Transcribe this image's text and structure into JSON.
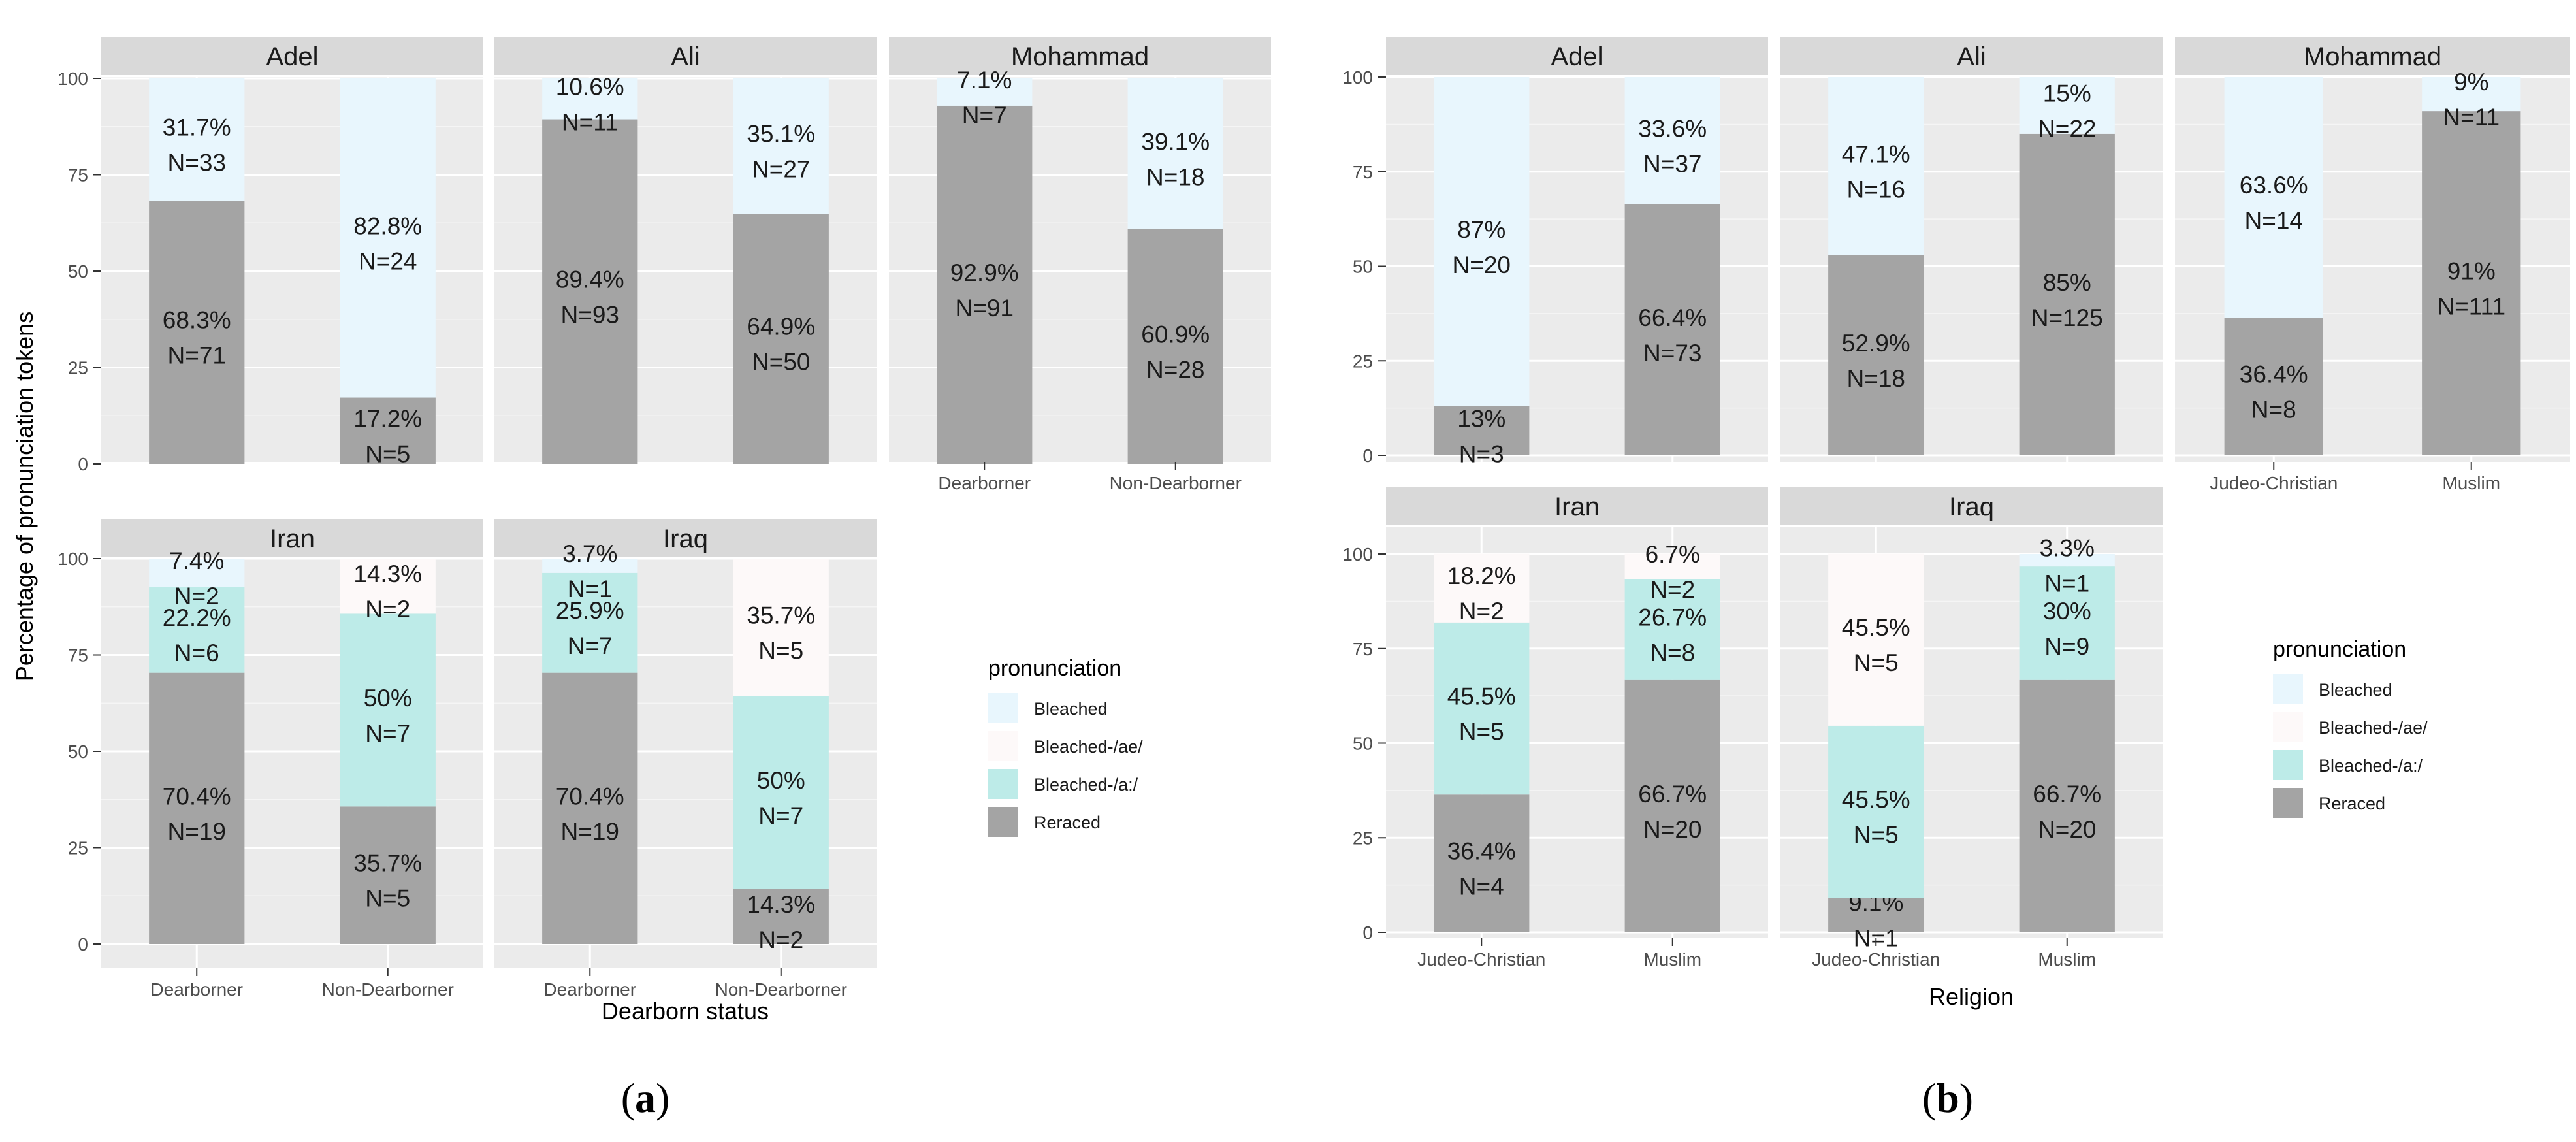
{
  "colors": {
    "Bleached": "#e8f6fd",
    "Bleached-/ae/": "#fdf9f9",
    "Bleached-/a:/": "#bdebe8",
    "Reraced": "#a4a4a4"
  },
  "fig_labels": {
    "a_open": "(",
    "a_letter": "a",
    "a_close": ")",
    "b_open": "(",
    "b_letter": "b",
    "b_close": ")"
  },
  "chart_data": [
    {
      "type": "bar",
      "stacked": true,
      "id": "a",
      "xlabel": "Dearborn status",
      "ylabel": "Percentage of pronunciation tokens",
      "ylim": [
        0,
        100
      ],
      "yticks": [
        0,
        25,
        50,
        75,
        100
      ],
      "categories": [
        "Dearborner",
        "Non-Dearborner"
      ],
      "legend": {
        "title": "pronunciation",
        "entries": [
          "Bleached",
          "Bleached-/ae/",
          "Bleached-/a:/",
          "Reraced"
        ]
      },
      "panels": [
        {
          "name": "Adel",
          "bars": [
            {
              "category": "Dearborner",
              "segments": [
                {
                  "level": "Reraced",
                  "value": 68.3,
                  "pct": "68.3%",
                  "n": "N=71"
                },
                {
                  "level": "Bleached",
                  "value": 31.7,
                  "pct": "31.7%",
                  "n": "N=33"
                }
              ]
            },
            {
              "category": "Non-Dearborner",
              "segments": [
                {
                  "level": "Reraced",
                  "value": 17.2,
                  "pct": "17.2%",
                  "n": "N=5"
                },
                {
                  "level": "Bleached",
                  "value": 82.8,
                  "pct": "82.8%",
                  "n": "N=24"
                }
              ]
            }
          ]
        },
        {
          "name": "Ali",
          "bars": [
            {
              "category": "Dearborner",
              "segments": [
                {
                  "level": "Reraced",
                  "value": 89.4,
                  "pct": "89.4%",
                  "n": "N=93"
                },
                {
                  "level": "Bleached",
                  "value": 10.6,
                  "pct": "10.6%",
                  "n": "N=11"
                }
              ]
            },
            {
              "category": "Non-Dearborner",
              "segments": [
                {
                  "level": "Reraced",
                  "value": 64.9,
                  "pct": "64.9%",
                  "n": "N=50"
                },
                {
                  "level": "Bleached",
                  "value": 35.1,
                  "pct": "35.1%",
                  "n": "N=27"
                }
              ]
            }
          ]
        },
        {
          "name": "Mohammad",
          "bars": [
            {
              "category": "Dearborner",
              "segments": [
                {
                  "level": "Reraced",
                  "value": 92.9,
                  "pct": "92.9%",
                  "n": "N=91"
                },
                {
                  "level": "Bleached",
                  "value": 7.1,
                  "pct": "7.1%",
                  "n": "N=7"
                }
              ]
            },
            {
              "category": "Non-Dearborner",
              "segments": [
                {
                  "level": "Reraced",
                  "value": 60.9,
                  "pct": "60.9%",
                  "n": "N=28"
                },
                {
                  "level": "Bleached",
                  "value": 39.1,
                  "pct": "39.1%",
                  "n": "N=18"
                }
              ]
            }
          ]
        },
        {
          "name": "Iran",
          "bars": [
            {
              "category": "Dearborner",
              "segments": [
                {
                  "level": "Reraced",
                  "value": 70.4,
                  "pct": "70.4%",
                  "n": "N=19"
                },
                {
                  "level": "Bleached-/a:/",
                  "value": 22.2,
                  "pct": "22.2%",
                  "n": "N=6"
                },
                {
                  "level": "Bleached",
                  "value": 7.4,
                  "pct": "7.4%",
                  "n": "N=2"
                }
              ]
            },
            {
              "category": "Non-Dearborner",
              "segments": [
                {
                  "level": "Reraced",
                  "value": 35.7,
                  "pct": "35.7%",
                  "n": "N=5"
                },
                {
                  "level": "Bleached-/a:/",
                  "value": 50.0,
                  "pct": "50%",
                  "n": "N=7"
                },
                {
                  "level": "Bleached-/ae/",
                  "value": 14.3,
                  "pct": "14.3%",
                  "n": "N=2"
                }
              ]
            }
          ]
        },
        {
          "name": "Iraq",
          "bars": [
            {
              "category": "Dearborner",
              "segments": [
                {
                  "level": "Reraced",
                  "value": 70.4,
                  "pct": "70.4%",
                  "n": "N=19"
                },
                {
                  "level": "Bleached-/a:/",
                  "value": 25.9,
                  "pct": "25.9%",
                  "n": "N=7"
                },
                {
                  "level": "Bleached",
                  "value": 3.7,
                  "pct": "3.7%",
                  "n": "N=1"
                }
              ]
            },
            {
              "category": "Non-Dearborner",
              "segments": [
                {
                  "level": "Reraced",
                  "value": 14.3,
                  "pct": "14.3%",
                  "n": "N=2"
                },
                {
                  "level": "Bleached-/a:/",
                  "value": 50.0,
                  "pct": "50%",
                  "n": "N=7"
                },
                {
                  "level": "Bleached-/ae/",
                  "value": 35.7,
                  "pct": "35.7%",
                  "n": "N=5"
                }
              ]
            }
          ]
        }
      ]
    },
    {
      "type": "bar",
      "stacked": true,
      "id": "b",
      "xlabel": "Religion",
      "ylabel": "",
      "ylim": [
        0,
        100
      ],
      "yticks": [
        0,
        25,
        50,
        75,
        100
      ],
      "categories": [
        "Judeo-Christian",
        "Muslim"
      ],
      "legend": {
        "title": "pronunciation",
        "entries": [
          "Bleached",
          "Bleached-/ae/",
          "Bleached-/a:/",
          "Reraced"
        ]
      },
      "panels": [
        {
          "name": "Adel",
          "bars": [
            {
              "category": "Judeo-Christian",
              "segments": [
                {
                  "level": "Reraced",
                  "value": 13.0,
                  "pct": "13%",
                  "n": "N=3"
                },
                {
                  "level": "Bleached",
                  "value": 87.0,
                  "pct": "87%",
                  "n": "N=20"
                }
              ]
            },
            {
              "category": "Muslim",
              "segments": [
                {
                  "level": "Reraced",
                  "value": 66.4,
                  "pct": "66.4%",
                  "n": "N=73"
                },
                {
                  "level": "Bleached",
                  "value": 33.6,
                  "pct": "33.6%",
                  "n": "N=37"
                }
              ]
            }
          ]
        },
        {
          "name": "Ali",
          "bars": [
            {
              "category": "Judeo-Christian",
              "segments": [
                {
                  "level": "Reraced",
                  "value": 52.9,
                  "pct": "52.9%",
                  "n": "N=18"
                },
                {
                  "level": "Bleached",
                  "value": 47.1,
                  "pct": "47.1%",
                  "n": "N=16"
                }
              ]
            },
            {
              "category": "Muslim",
              "segments": [
                {
                  "level": "Reraced",
                  "value": 85.0,
                  "pct": "85%",
                  "n": "N=125"
                },
                {
                  "level": "Bleached",
                  "value": 15.0,
                  "pct": "15%",
                  "n": "N=22"
                }
              ]
            }
          ]
        },
        {
          "name": "Mohammad",
          "bars": [
            {
              "category": "Judeo-Christian",
              "segments": [
                {
                  "level": "Reraced",
                  "value": 36.4,
                  "pct": "36.4%",
                  "n": "N=8"
                },
                {
                  "level": "Bleached",
                  "value": 63.6,
                  "pct": "63.6%",
                  "n": "N=14"
                }
              ]
            },
            {
              "category": "Muslim",
              "segments": [
                {
                  "level": "Reraced",
                  "value": 91.0,
                  "pct": "91%",
                  "n": "N=111"
                },
                {
                  "level": "Bleached",
                  "value": 9.0,
                  "pct": "9%",
                  "n": "N=11"
                }
              ]
            }
          ]
        },
        {
          "name": "Iran",
          "bars": [
            {
              "category": "Judeo-Christian",
              "segments": [
                {
                  "level": "Reraced",
                  "value": 36.4,
                  "pct": "36.4%",
                  "n": "N=4"
                },
                {
                  "level": "Bleached-/a:/",
                  "value": 45.5,
                  "pct": "45.5%",
                  "n": "N=5"
                },
                {
                  "level": "Bleached-/ae/",
                  "value": 18.2,
                  "pct": "18.2%",
                  "n": "N=2"
                }
              ]
            },
            {
              "category": "Muslim",
              "segments": [
                {
                  "level": "Reraced",
                  "value": 66.7,
                  "pct": "66.7%",
                  "n": "N=20"
                },
                {
                  "level": "Bleached-/a:/",
                  "value": 26.7,
                  "pct": "26.7%",
                  "n": "N=8"
                },
                {
                  "level": "Bleached-/ae/",
                  "value": 6.7,
                  "pct": "6.7%",
                  "n": "N=2"
                }
              ]
            }
          ]
        },
        {
          "name": "Iraq",
          "bars": [
            {
              "category": "Judeo-Christian",
              "segments": [
                {
                  "level": "Reraced",
                  "value": 9.1,
                  "pct": "9.1%",
                  "n": "N=1"
                },
                {
                  "level": "Bleached-/a:/",
                  "value": 45.5,
                  "pct": "45.5%",
                  "n": "N=5"
                },
                {
                  "level": "Bleached-/ae/",
                  "value": 45.5,
                  "pct": "45.5%",
                  "n": "N=5"
                }
              ]
            },
            {
              "category": "Muslim",
              "segments": [
                {
                  "level": "Reraced",
                  "value": 66.7,
                  "pct": "66.7%",
                  "n": "N=20"
                },
                {
                  "level": "Bleached-/a:/",
                  "value": 30.0,
                  "pct": "30%",
                  "n": "N=9"
                },
                {
                  "level": "Bleached",
                  "value": 3.3,
                  "pct": "3.3%",
                  "n": "N=1"
                }
              ]
            }
          ]
        }
      ]
    }
  ]
}
